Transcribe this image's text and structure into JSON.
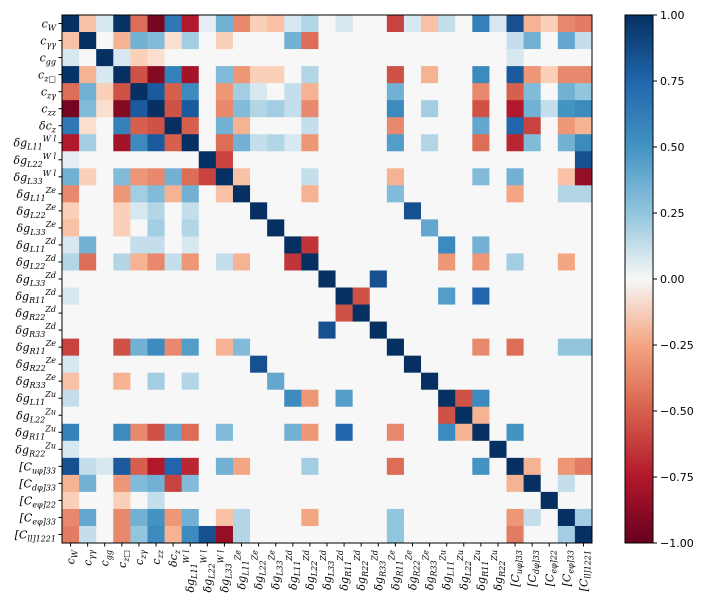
{
  "chart_data": {
    "type": "heatmap",
    "title": "",
    "labels": [
      "c_W",
      "c_γγ",
      "c_gg",
      "c_z□",
      "c_zγ",
      "c_zz",
      "δc_z",
      "δg^{W l}_{L11}",
      "δg^{W l}_{L22}",
      "δg^{W l}_{L33}",
      "δg^{Ze}_{L11}",
      "δg^{Ze}_{L22}",
      "δg^{Ze}_{L33}",
      "δg^{Zd}_{L11}",
      "δg^{Zd}_{L22}",
      "δg^{Zd}_{L33}",
      "δg^{Zd}_{R11}",
      "δg^{Zd}_{R22}",
      "δg^{Zd}_{R33}",
      "δg^{Ze}_{R11}",
      "δg^{Ze}_{R22}",
      "δg^{Ze}_{R33}",
      "δg^{Zu}_{L11}",
      "δg^{Zu}_{L22}",
      "δg^{Zu}_{R11}",
      "δg^{Zu}_{R22}",
      "[C_uφ]33",
      "[C_dφ]33",
      "[C_eφ]22",
      "[C_eφ]33",
      "[C_ll]1221"
    ],
    "colorbar": {
      "min": -1.0,
      "max": 1.0,
      "ticks": [
        "1.00",
        "0.75",
        "0.50",
        "0.25",
        "0.00",
        "−0.25",
        "−0.50",
        "−0.75",
        "−1.00"
      ]
    },
    "colormap": "RdBu",
    "correlations": [
      {
        "i": 0,
        "j": 1,
        "v": -0.15
      },
      {
        "i": 0,
        "j": 2,
        "v": 0.05
      },
      {
        "i": 0,
        "j": 3,
        "v": 0.98
      },
      {
        "i": 0,
        "j": 4,
        "v": -0.45
      },
      {
        "i": 0,
        "j": 5,
        "v": -0.95
      },
      {
        "i": 0,
        "j": 6,
        "v": 0.65
      },
      {
        "i": 0,
        "j": 7,
        "v": -0.75
      },
      {
        "i": 0,
        "j": 8,
        "v": 0.03
      },
      {
        "i": 0,
        "j": 9,
        "v": 0.35
      },
      {
        "i": 0,
        "j": 10,
        "v": -0.35
      },
      {
        "i": 0,
        "j": 11,
        "v": -0.1
      },
      {
        "i": 0,
        "j": 12,
        "v": -0.15
      },
      {
        "i": 0,
        "j": 13,
        "v": 0.05
      },
      {
        "i": 0,
        "j": 14,
        "v": 0.15
      },
      {
        "i": 0,
        "j": 16,
        "v": 0.05
      },
      {
        "i": 0,
        "j": 19,
        "v": -0.6
      },
      {
        "i": 0,
        "j": 20,
        "v": 0.05
      },
      {
        "i": 0,
        "j": 21,
        "v": -0.15
      },
      {
        "i": 0,
        "j": 22,
        "v": 0.1
      },
      {
        "i": 0,
        "j": 24,
        "v": 0.6
      },
      {
        "i": 0,
        "j": 25,
        "v": 0.05
      },
      {
        "i": 0,
        "j": 26,
        "v": 0.85
      },
      {
        "i": 0,
        "j": 27,
        "v": -0.2
      },
      {
        "i": 0,
        "j": 28,
        "v": -0.1
      },
      {
        "i": 0,
        "j": 29,
        "v": -0.35
      },
      {
        "i": 0,
        "j": 30,
        "v": -0.4
      },
      {
        "i": 1,
        "j": 3,
        "v": -0.2
      },
      {
        "i": 1,
        "j": 4,
        "v": 0.35
      },
      {
        "i": 1,
        "j": 5,
        "v": 0.3
      },
      {
        "i": 1,
        "j": 6,
        "v": -0.05
      },
      {
        "i": 1,
        "j": 7,
        "v": 0.2
      },
      {
        "i": 1,
        "j": 9,
        "v": -0.1
      },
      {
        "i": 1,
        "j": 13,
        "v": 0.35
      },
      {
        "i": 1,
        "j": 14,
        "v": -0.45
      },
      {
        "i": 1,
        "j": 26,
        "v": 0.1
      },
      {
        "i": 1,
        "j": 27,
        "v": 0.35
      },
      {
        "i": 1,
        "j": 29,
        "v": 0.4
      },
      {
        "i": 1,
        "j": 30,
        "v": 0.1
      },
      {
        "i": 2,
        "j": 3,
        "v": 0.05
      },
      {
        "i": 2,
        "j": 4,
        "v": -0.1
      },
      {
        "i": 2,
        "j": 5,
        "v": -0.05
      },
      {
        "i": 2,
        "j": 26,
        "v": 0.05
      },
      {
        "i": 3,
        "j": 4,
        "v": -0.55
      },
      {
        "i": 3,
        "j": 5,
        "v": -0.9
      },
      {
        "i": 3,
        "j": 6,
        "v": 0.6
      },
      {
        "i": 3,
        "j": 7,
        "v": -0.8
      },
      {
        "i": 3,
        "j": 9,
        "v": 0.3
      },
      {
        "i": 3,
        "j": 10,
        "v": -0.3
      },
      {
        "i": 3,
        "j": 11,
        "v": -0.1
      },
      {
        "i": 3,
        "j": 12,
        "v": -0.1
      },
      {
        "i": 3,
        "j": 14,
        "v": 0.15
      },
      {
        "i": 3,
        "j": 19,
        "v": -0.55
      },
      {
        "i": 3,
        "j": 21,
        "v": -0.2
      },
      {
        "i": 3,
        "j": 24,
        "v": 0.55
      },
      {
        "i": 3,
        "j": 26,
        "v": 0.8
      },
      {
        "i": 3,
        "j": 27,
        "v": -0.3
      },
      {
        "i": 3,
        "j": 28,
        "v": -0.1
      },
      {
        "i": 3,
        "j": 29,
        "v": -0.35
      },
      {
        "i": 3,
        "j": 30,
        "v": -0.35
      },
      {
        "i": 4,
        "j": 5,
        "v": 0.8
      },
      {
        "i": 4,
        "j": 6,
        "v": -0.5
      },
      {
        "i": 4,
        "j": 7,
        "v": 0.55
      },
      {
        "i": 4,
        "j": 9,
        "v": -0.3
      },
      {
        "i": 4,
        "j": 10,
        "v": 0.2
      },
      {
        "i": 4,
        "j": 11,
        "v": 0.05
      },
      {
        "i": 4,
        "j": 13,
        "v": 0.1
      },
      {
        "i": 4,
        "j": 14,
        "v": -0.2
      },
      {
        "i": 4,
        "j": 19,
        "v": 0.35
      },
      {
        "i": 4,
        "j": 24,
        "v": -0.35
      },
      {
        "i": 4,
        "j": 26,
        "v": -0.5
      },
      {
        "i": 4,
        "j": 27,
        "v": 0.3
      },
      {
        "i": 4,
        "j": 29,
        "v": 0.35
      },
      {
        "i": 4,
        "j": 30,
        "v": 0.25
      },
      {
        "i": 5,
        "j": 6,
        "v": -0.55
      },
      {
        "i": 5,
        "j": 7,
        "v": 0.8
      },
      {
        "i": 5,
        "j": 9,
        "v": -0.35
      },
      {
        "i": 5,
        "j": 10,
        "v": 0.3
      },
      {
        "i": 5,
        "j": 11,
        "v": 0.15
      },
      {
        "i": 5,
        "j": 12,
        "v": 0.2
      },
      {
        "i": 5,
        "j": 13,
        "v": 0.1
      },
      {
        "i": 5,
        "j": 14,
        "v": -0.35
      },
      {
        "i": 5,
        "j": 19,
        "v": 0.55
      },
      {
        "i": 5,
        "j": 21,
        "v": 0.2
      },
      {
        "i": 5,
        "j": 24,
        "v": -0.55
      },
      {
        "i": 5,
        "j": 26,
        "v": -0.75
      },
      {
        "i": 5,
        "j": 27,
        "v": 0.35
      },
      {
        "i": 5,
        "j": 28,
        "v": 0.1
      },
      {
        "i": 5,
        "j": 29,
        "v": 0.5
      },
      {
        "i": 5,
        "j": 30,
        "v": 0.55
      },
      {
        "i": 6,
        "j": 7,
        "v": -0.5
      },
      {
        "i": 6,
        "j": 9,
        "v": 0.35
      },
      {
        "i": 6,
        "j": 10,
        "v": -0.2
      },
      {
        "i": 6,
        "j": 14,
        "v": 0.1
      },
      {
        "i": 6,
        "j": 19,
        "v": -0.35
      },
      {
        "i": 6,
        "j": 24,
        "v": 0.4
      },
      {
        "i": 6,
        "j": 26,
        "v": 0.75
      },
      {
        "i": 6,
        "j": 27,
        "v": -0.6
      },
      {
        "i": 6,
        "j": 29,
        "v": -0.3
      },
      {
        "i": 6,
        "j": 30,
        "v": -0.2
      },
      {
        "i": 7,
        "j": 9,
        "v": -0.45
      },
      {
        "i": 7,
        "j": 10,
        "v": 0.35
      },
      {
        "i": 7,
        "j": 11,
        "v": 0.1
      },
      {
        "i": 7,
        "j": 12,
        "v": 0.15
      },
      {
        "i": 7,
        "j": 13,
        "v": 0.05
      },
      {
        "i": 7,
        "j": 14,
        "v": -0.3
      },
      {
        "i": 7,
        "j": 19,
        "v": 0.45
      },
      {
        "i": 7,
        "j": 21,
        "v": 0.15
      },
      {
        "i": 7,
        "j": 24,
        "v": -0.45
      },
      {
        "i": 7,
        "j": 26,
        "v": -0.7
      },
      {
        "i": 7,
        "j": 27,
        "v": 0.3
      },
      {
        "i": 7,
        "j": 29,
        "v": 0.35
      },
      {
        "i": 7,
        "j": 30,
        "v": 0.55
      },
      {
        "i": 8,
        "j": 9,
        "v": -0.6
      },
      {
        "i": 8,
        "j": 30,
        "v": 0.85
      },
      {
        "i": 9,
        "j": 10,
        "v": -0.15
      },
      {
        "i": 9,
        "j": 14,
        "v": 0.1
      },
      {
        "i": 9,
        "j": 19,
        "v": -0.2
      },
      {
        "i": 9,
        "j": 24,
        "v": 0.3
      },
      {
        "i": 9,
        "j": 26,
        "v": 0.35
      },
      {
        "i": 9,
        "j": 29,
        "v": -0.15
      },
      {
        "i": 9,
        "j": 30,
        "v": -0.85
      },
      {
        "i": 10,
        "j": 14,
        "v": -0.2
      },
      {
        "i": 10,
        "j": 19,
        "v": 0.3
      },
      {
        "i": 10,
        "j": 26,
        "v": -0.25
      },
      {
        "i": 10,
        "j": 29,
        "v": 0.15
      },
      {
        "i": 10,
        "j": 30,
        "v": 0.15
      },
      {
        "i": 11,
        "j": 20,
        "v": 0.85
      },
      {
        "i": 12,
        "j": 21,
        "v": 0.4
      },
      {
        "i": 13,
        "j": 14,
        "v": -0.65
      },
      {
        "i": 13,
        "j": 22,
        "v": 0.55
      },
      {
        "i": 13,
        "j": 24,
        "v": 0.35
      },
      {
        "i": 14,
        "j": 22,
        "v": -0.3
      },
      {
        "i": 14,
        "j": 24,
        "v": -0.3
      },
      {
        "i": 14,
        "j": 26,
        "v": 0.2
      },
      {
        "i": 14,
        "j": 29,
        "v": -0.25
      },
      {
        "i": 15,
        "j": 18,
        "v": 0.85
      },
      {
        "i": 16,
        "j": 17,
        "v": -0.55
      },
      {
        "i": 16,
        "j": 22,
        "v": 0.45
      },
      {
        "i": 16,
        "j": 24,
        "v": 0.75
      },
      {
        "i": 19,
        "j": 24,
        "v": -0.35
      },
      {
        "i": 19,
        "j": 26,
        "v": -0.45
      },
      {
        "i": 19,
        "j": 29,
        "v": 0.25
      },
      {
        "i": 19,
        "j": 30,
        "v": 0.25
      },
      {
        "i": 22,
        "j": 23,
        "v": -0.55
      },
      {
        "i": 22,
        "j": 24,
        "v": 0.55
      },
      {
        "i": 23,
        "j": 24,
        "v": -0.2
      },
      {
        "i": 24,
        "j": 26,
        "v": 0.5
      },
      {
        "i": 26,
        "j": 27,
        "v": -0.2
      },
      {
        "i": 26,
        "j": 29,
        "v": -0.3
      },
      {
        "i": 26,
        "j": 30,
        "v": -0.4
      },
      {
        "i": 27,
        "j": 29,
        "v": 0.1
      },
      {
        "i": 29,
        "j": 30,
        "v": 0.2
      }
    ]
  }
}
